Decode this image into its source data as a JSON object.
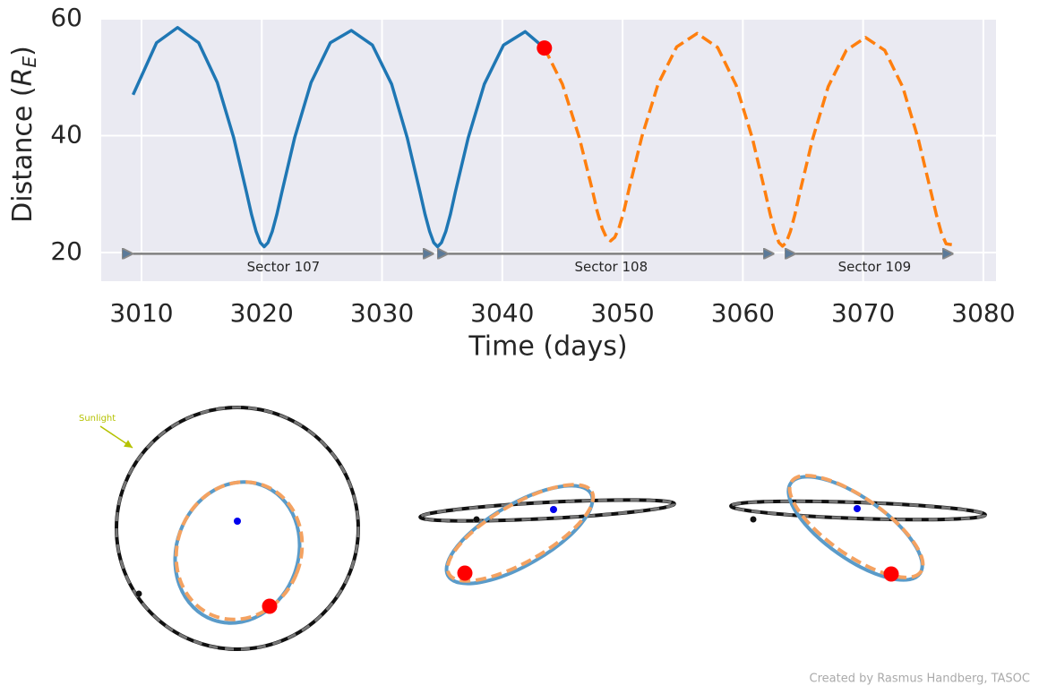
{
  "chart_data": {
    "type": "line",
    "xlabel": "Time (days)",
    "ylabel": [
      "Distance (",
      "R",
      "E",
      ")"
    ],
    "xlim": [
      3006.65,
      3081.05
    ],
    "ylim": [
      15.1,
      60.15
    ],
    "xticks": [
      3010,
      3020,
      3030,
      3040,
      3050,
      3060,
      3070,
      3080
    ],
    "yticks": [
      20,
      40,
      60
    ],
    "grid": true,
    "series": [
      {
        "color": "#1f77b4",
        "dashed": false,
        "x": [
          3009.3,
          3011.25,
          3013,
          3014.75,
          3016.3,
          3017.66,
          3018.72,
          3019.15,
          3019.53,
          3019.88,
          3020.2,
          3020.52,
          3020.87,
          3021.25,
          3021.68,
          3022.74,
          3024.1,
          3025.7,
          3027.45,
          3029.2,
          3030.8,
          3032.1,
          3033.15,
          3033.58,
          3033.96,
          3034.3,
          3034.62,
          3034.94,
          3035.3,
          3035.68,
          3036.1,
          3037.16,
          3038.5,
          3040.1,
          3041.9,
          3043.5
        ],
        "values": [
          47,
          55.9,
          58.5,
          55.9,
          49.1,
          39.7,
          30.4,
          26.5,
          23.6,
          21.7,
          21.0,
          21.7,
          23.6,
          26.5,
          30.4,
          39.7,
          49.1,
          55.9,
          58.0,
          55.5,
          48.8,
          39.6,
          30.4,
          26.5,
          23.6,
          21.7,
          21.0,
          21.7,
          23.6,
          26.5,
          30.4,
          39.6,
          48.8,
          55.5,
          57.8,
          55.0
        ]
      },
      {
        "color": "#ff7f0e",
        "dashed": true,
        "x": [
          3043.5,
          3045.0,
          3046.4,
          3047.45,
          3047.9,
          3048.3,
          3048.65,
          3049.0,
          3049.35,
          3049.7,
          3050.1,
          3050.55,
          3051.6,
          3052.95,
          3054.5,
          3056.2,
          3057.9,
          3059.45,
          3060.8,
          3061.85,
          3062.28,
          3062.66,
          3063.0,
          3063.3,
          3063.6,
          3063.95,
          3064.33,
          3064.75,
          3065.8,
          3067.1,
          3068.6,
          3070.2,
          3071.8,
          3073.3,
          3074.6,
          3075.65,
          3076.1,
          3076.5,
          3076.9,
          3077.5
        ],
        "values": [
          55,
          48.8,
          39.7,
          31,
          27,
          24.2,
          22.6,
          22.0,
          22.6,
          24.2,
          27,
          31,
          39.8,
          48.8,
          55.2,
          57.5,
          55.1,
          48.6,
          39.5,
          30.4,
          26.5,
          23.6,
          21.7,
          21.1,
          21.7,
          23.6,
          26.5,
          30.4,
          39.4,
          48.4,
          54.6,
          56.8,
          54.6,
          48.3,
          39.3,
          30.3,
          26.4,
          23.4,
          21.5,
          21.3
        ]
      }
    ],
    "marker": {
      "x": 3043.5,
      "y": 55,
      "color": "#ff0000"
    },
    "sectors": [
      {
        "label": "Sector 107",
        "start": 3009.3,
        "end": 3034.3,
        "y": 19.8
      },
      {
        "label": "Sector 108",
        "start": 3035.5,
        "end": 3062.6,
        "y": 19.8
      },
      {
        "label": "Sector 109",
        "start": 3064.4,
        "end": 3077.5,
        "y": 19.8
      }
    ]
  },
  "orbit_views": {
    "sunlight_label": "Sunlight"
  },
  "credit": "Created by Rasmus Handberg, TASOC"
}
